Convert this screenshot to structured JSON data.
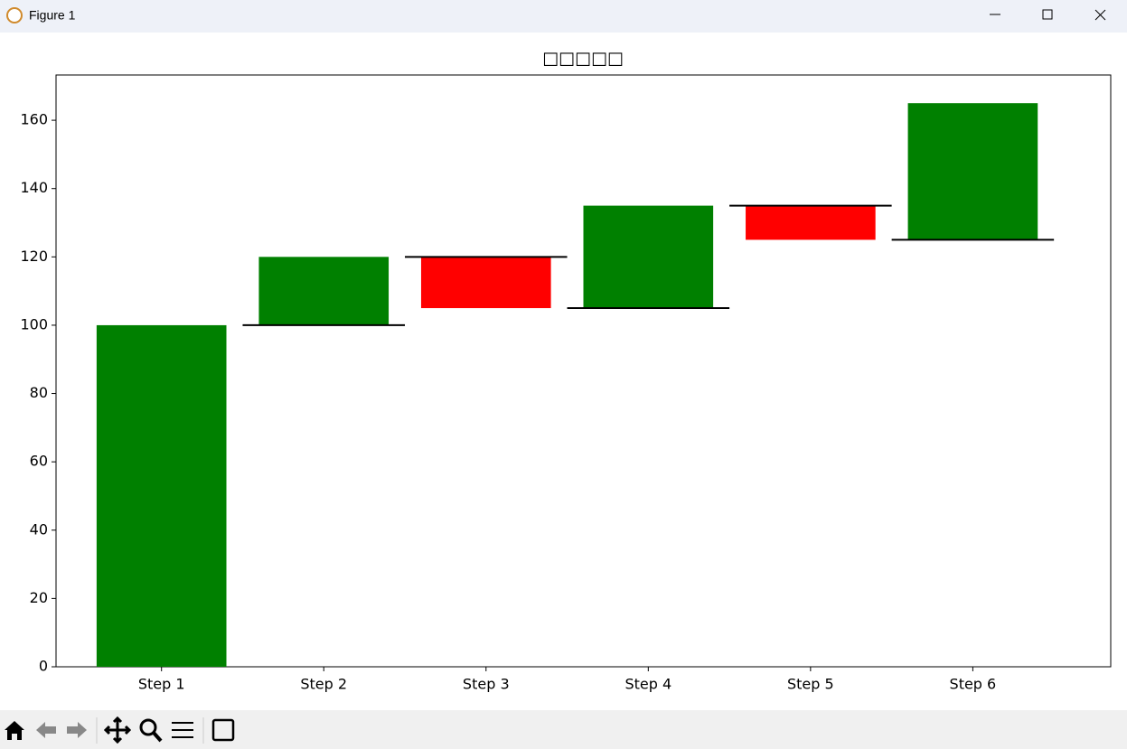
{
  "window": {
    "title": "Figure 1"
  },
  "chart_data": {
    "type": "waterfall",
    "title": "□□□□□",
    "categories": [
      "Step 1",
      "Step 2",
      "Step 3",
      "Step 4",
      "Step 5",
      "Step 6"
    ],
    "values": [
      100,
      20,
      -15,
      30,
      -10,
      40
    ],
    "colors": [
      "green",
      "green",
      "red",
      "green",
      "red",
      "green"
    ],
    "connector_color": "black",
    "ylim": [
      0,
      173.25
    ],
    "yticks": [
      0,
      20,
      40,
      60,
      80,
      100,
      120,
      140,
      160
    ],
    "grid": false
  }
}
